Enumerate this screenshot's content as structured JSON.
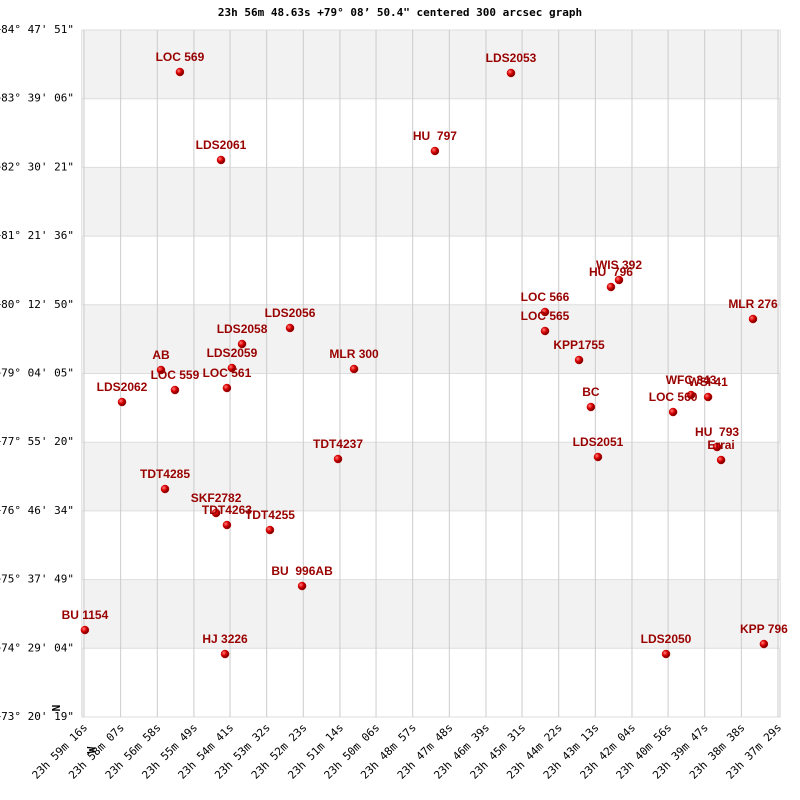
{
  "chart_data": {
    "type": "scatter",
    "title": "23h 56m 48.63s +79° 08’ 50.4\" centered 300 arcsec graph",
    "compass": {
      "north": "N",
      "west": "W"
    },
    "color": "#cc0000",
    "grid": true,
    "xlim": [
      23.98778,
      23.62472
    ],
    "ylim": [
      73.33861,
      84.7975
    ],
    "xticks": [
      {
        "value": 23.98778,
        "label": "23h 59m 16s"
      },
      {
        "value": 23.96861,
        "label": "23h 58m 07s"
      },
      {
        "value": 23.94944,
        "label": "23h 56m 58s"
      },
      {
        "value": 23.93028,
        "label": "23h 55m 49s"
      },
      {
        "value": 23.91139,
        "label": "23h 54m 41s"
      },
      {
        "value": 23.89222,
        "label": "23h 53m 32s"
      },
      {
        "value": 23.87306,
        "label": "23h 52m 23s"
      },
      {
        "value": 23.85389,
        "label": "23h 51m 14s"
      },
      {
        "value": 23.835,
        "label": "23h 50m 06s"
      },
      {
        "value": 23.81583,
        "label": "23h 48m 57s"
      },
      {
        "value": 23.79667,
        "label": "23h 47m 48s"
      },
      {
        "value": 23.7775,
        "label": "23h 46m 39s"
      },
      {
        "value": 23.75861,
        "label": "23h 45m 31s"
      },
      {
        "value": 23.73944,
        "label": "23h 44m 22s"
      },
      {
        "value": 23.72028,
        "label": "23h 43m 13s"
      },
      {
        "value": 23.70111,
        "label": "23h 42m 04s"
      },
      {
        "value": 23.68222,
        "label": "23h 40m 56s"
      },
      {
        "value": 23.66306,
        "label": "23h 39m 47s"
      },
      {
        "value": 23.64389,
        "label": "23h 38m 38s"
      },
      {
        "value": 23.62472,
        "label": "23h 37m 29s"
      }
    ],
    "yticks": [
      {
        "value": 84.7975,
        "label": "+84° 47' 51\""
      },
      {
        "value": 83.65167,
        "label": "+83° 39' 06\""
      },
      {
        "value": 82.50583,
        "label": "+82° 30' 21\""
      },
      {
        "value": 81.36,
        "label": "+81° 21' 36\""
      },
      {
        "value": 80.21389,
        "label": "+80° 12' 50\""
      },
      {
        "value": 79.06806,
        "label": "+79° 04' 05\""
      },
      {
        "value": 77.92222,
        "label": "+77° 55' 20\""
      },
      {
        "value": 76.77611,
        "label": "+76° 46' 34\""
      },
      {
        "value": 75.63028,
        "label": "+75° 37' 49\""
      },
      {
        "value": 74.48444,
        "label": "+74° 29' 04\""
      },
      {
        "value": 73.33861,
        "label": "+73° 20' 19\""
      }
    ],
    "labels": [
      "LOC 569",
      "LDS2053",
      "HU  797",
      "LDS2061",
      "WIS 392",
      "HU  796",
      "LOC 566",
      "MLR 276",
      "LDS2056",
      "LOC 565",
      "LDS2058",
      "KPP1755",
      "AB",
      "LDS2059",
      "MLR 300",
      "LDS2062",
      "LOC 559",
      "LOC 561",
      "WFC 343",
      "WSI 41",
      "LOC 560",
      "BC",
      "HU  793",
      "Errai",
      "LDS2051",
      "TDT4237",
      "TDT4285",
      "SKF2782",
      "TDT4263",
      "TDT4255",
      "BU  996AB",
      "BU 1154",
      "HJ 3226",
      "LDS2050",
      "KPP 796"
    ],
    "x": [
      23.9376,
      23.7644,
      23.8042,
      23.9161,
      23.7079,
      23.7121,
      23.7466,
      23.6378,
      23.88,
      23.7466,
      23.9051,
      23.7288,
      23.9475,
      23.9104,
      23.8465,
      23.9679,
      23.9402,
      23.913,
      23.6702,
      23.6613,
      23.6796,
      23.7226,
      23.6566,
      23.6545,
      23.7189,
      23.8549,
      23.9454,
      23.9187,
      23.913,
      23.8905,
      23.8737,
      23.9873,
      23.914,
      23.6833,
      23.6321
    ],
    "values": [
      84.0969,
      84.0803,
      82.7792,
      82.6291,
      80.6275,
      80.5107,
      80.0937,
      79.977,
      79.8269,
      79.7768,
      79.56,
      79.2931,
      79.1263,
      79.1597,
      79.143,
      78.5925,
      78.7927,
      78.8261,
      78.7093,
      78.6759,
      78.4257,
      78.5091,
      77.8419,
      77.6251,
      77.6751,
      77.6418,
      77.1414,
      76.7411,
      76.5409,
      76.4575,
      75.5234,
      74.7895,
      74.3892,
      74.3892,
      74.556
    ]
  }
}
